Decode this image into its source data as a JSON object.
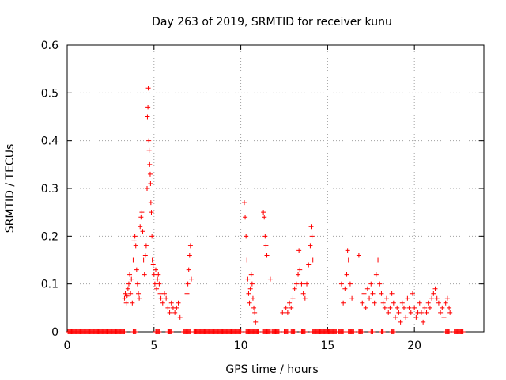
{
  "chart_data": {
    "type": "scatter",
    "title": "Day 263 of 2019, SRMTID for receiver kunu",
    "xlabel": "GPS time / hours",
    "ylabel": "SRMTID / TECUs",
    "xlim": [
      0,
      24
    ],
    "ylim": [
      0,
      0.6
    ],
    "xticks": [
      0,
      5,
      10,
      15,
      20
    ],
    "xtick_labels": [
      "0",
      "5",
      "10",
      "15",
      "20"
    ],
    "yticks": [
      0,
      0.1,
      0.2,
      0.3,
      0.4,
      0.5,
      0.6
    ],
    "ytick_labels": [
      "0",
      "0.1",
      "0.2",
      "0.3",
      "0.4",
      "0.5",
      "0.6"
    ],
    "grid": true,
    "marker": "+",
    "color": "#ff0000",
    "series": [
      {
        "name": "SRMTID",
        "points": [
          [
            3.3,
            0.07
          ],
          [
            3.35,
            0.08
          ],
          [
            3.4,
            0.06
          ],
          [
            3.45,
            0.075
          ],
          [
            3.5,
            0.09
          ],
          [
            3.55,
            0.1
          ],
          [
            3.6,
            0.12
          ],
          [
            3.65,
            0.08
          ],
          [
            3.7,
            0.11
          ],
          [
            3.75,
            0.06
          ],
          [
            3.8,
            0.15
          ],
          [
            3.85,
            0.19
          ],
          [
            3.9,
            0.2
          ],
          [
            3.95,
            0.18
          ],
          [
            4.0,
            0.13
          ],
          [
            4.05,
            0.1
          ],
          [
            4.1,
            0.08
          ],
          [
            4.15,
            0.07
          ],
          [
            4.2,
            0.22
          ],
          [
            4.25,
            0.24
          ],
          [
            4.3,
            0.25
          ],
          [
            4.35,
            0.21
          ],
          [
            4.4,
            0.15
          ],
          [
            4.45,
            0.12
          ],
          [
            4.5,
            0.16
          ],
          [
            4.55,
            0.18
          ],
          [
            4.6,
            0.3
          ],
          [
            4.62,
            0.45
          ],
          [
            4.65,
            0.47
          ],
          [
            4.67,
            0.51
          ],
          [
            4.7,
            0.4
          ],
          [
            4.72,
            0.38
          ],
          [
            4.75,
            0.35
          ],
          [
            4.78,
            0.33
          ],
          [
            4.8,
            0.31
          ],
          [
            4.82,
            0.27
          ],
          [
            4.85,
            0.25
          ],
          [
            4.88,
            0.2
          ],
          [
            4.9,
            0.15
          ],
          [
            4.95,
            0.14
          ],
          [
            5.0,
            0.12
          ],
          [
            5.05,
            0.1
          ],
          [
            5.1,
            0.13
          ],
          [
            5.15,
            0.09
          ],
          [
            5.2,
            0.11
          ],
          [
            5.25,
            0.12
          ],
          [
            5.3,
            0.1
          ],
          [
            5.35,
            0.08
          ],
          [
            5.4,
            0.07
          ],
          [
            5.5,
            0.06
          ],
          [
            5.6,
            0.08
          ],
          [
            5.7,
            0.07
          ],
          [
            5.8,
            0.05
          ],
          [
            5.9,
            0.04
          ],
          [
            6.0,
            0.06
          ],
          [
            6.1,
            0.05
          ],
          [
            6.2,
            0.04
          ],
          [
            6.3,
            0.05
          ],
          [
            6.4,
            0.06
          ],
          [
            6.5,
            0.03
          ],
          [
            6.9,
            0.08
          ],
          [
            6.95,
            0.1
          ],
          [
            7.0,
            0.13
          ],
          [
            7.05,
            0.16
          ],
          [
            7.1,
            0.18
          ],
          [
            7.15,
            0.11
          ],
          [
            10.2,
            0.27
          ],
          [
            10.25,
            0.24
          ],
          [
            10.3,
            0.2
          ],
          [
            10.35,
            0.15
          ],
          [
            10.4,
            0.11
          ],
          [
            10.45,
            0.08
          ],
          [
            10.5,
            0.06
          ],
          [
            10.55,
            0.09
          ],
          [
            10.6,
            0.12
          ],
          [
            10.65,
            0.1
          ],
          [
            10.7,
            0.07
          ],
          [
            10.75,
            0.05
          ],
          [
            10.8,
            0.04
          ],
          [
            10.85,
            0.02
          ],
          [
            11.3,
            0.25
          ],
          [
            11.35,
            0.24
          ],
          [
            11.4,
            0.2
          ],
          [
            11.45,
            0.18
          ],
          [
            11.5,
            0.16
          ],
          [
            11.7,
            0.11
          ],
          [
            12.4,
            0.04
          ],
          [
            12.6,
            0.05
          ],
          [
            12.7,
            0.04
          ],
          [
            12.8,
            0.06
          ],
          [
            12.9,
            0.05
          ],
          [
            13.0,
            0.07
          ],
          [
            13.1,
            0.09
          ],
          [
            13.2,
            0.1
          ],
          [
            13.3,
            0.12
          ],
          [
            13.35,
            0.17
          ],
          [
            13.4,
            0.13
          ],
          [
            13.5,
            0.1
          ],
          [
            13.6,
            0.08
          ],
          [
            13.7,
            0.07
          ],
          [
            13.8,
            0.1
          ],
          [
            13.9,
            0.14
          ],
          [
            14.0,
            0.18
          ],
          [
            14.05,
            0.22
          ],
          [
            14.1,
            0.2
          ],
          [
            14.15,
            0.15
          ],
          [
            15.8,
            0.1
          ],
          [
            15.9,
            0.06
          ],
          [
            16.0,
            0.09
          ],
          [
            16.1,
            0.12
          ],
          [
            16.15,
            0.17
          ],
          [
            16.2,
            0.15
          ],
          [
            16.3,
            0.1
          ],
          [
            16.4,
            0.07
          ],
          [
            16.8,
            0.16
          ],
          [
            17.0,
            0.06
          ],
          [
            17.1,
            0.08
          ],
          [
            17.2,
            0.05
          ],
          [
            17.3,
            0.09
          ],
          [
            17.4,
            0.07
          ],
          [
            17.5,
            0.1
          ],
          [
            17.6,
            0.08
          ],
          [
            17.7,
            0.06
          ],
          [
            17.8,
            0.12
          ],
          [
            17.9,
            0.15
          ],
          [
            18.0,
            0.1
          ],
          [
            18.1,
            0.08
          ],
          [
            18.2,
            0.06
          ],
          [
            18.3,
            0.05
          ],
          [
            18.4,
            0.07
          ],
          [
            18.5,
            0.04
          ],
          [
            18.6,
            0.05
          ],
          [
            18.7,
            0.08
          ],
          [
            18.8,
            0.06
          ],
          [
            18.9,
            0.03
          ],
          [
            19.0,
            0.05
          ],
          [
            19.1,
            0.04
          ],
          [
            19.2,
            0.02
          ],
          [
            19.3,
            0.06
          ],
          [
            19.4,
            0.05
          ],
          [
            19.5,
            0.03
          ],
          [
            19.6,
            0.07
          ],
          [
            19.7,
            0.05
          ],
          [
            19.8,
            0.04
          ],
          [
            19.9,
            0.08
          ],
          [
            20.0,
            0.05
          ],
          [
            20.1,
            0.03
          ],
          [
            20.2,
            0.04
          ],
          [
            20.3,
            0.06
          ],
          [
            20.4,
            0.04
          ],
          [
            20.5,
            0.02
          ],
          [
            20.6,
            0.05
          ],
          [
            20.7,
            0.04
          ],
          [
            20.8,
            0.06
          ],
          [
            20.9,
            0.05
          ],
          [
            21.0,
            0.07
          ],
          [
            21.1,
            0.08
          ],
          [
            21.2,
            0.09
          ],
          [
            21.3,
            0.07
          ],
          [
            21.4,
            0.06
          ],
          [
            21.5,
            0.04
          ],
          [
            21.6,
            0.05
          ],
          [
            21.7,
            0.03
          ],
          [
            21.8,
            0.06
          ],
          [
            21.9,
            0.07
          ],
          [
            22.0,
            0.05
          ],
          [
            22.05,
            0.04
          ]
        ],
        "zero_ranges": [
          [
            0.05,
            3.3
          ],
          [
            3.8,
            3.95
          ],
          [
            5.1,
            5.3
          ],
          [
            5.8,
            6.0
          ],
          [
            6.7,
            7.1
          ],
          [
            7.3,
            10.0
          ],
          [
            10.3,
            11.0
          ],
          [
            11.3,
            11.7
          ],
          [
            11.8,
            12.2
          ],
          [
            12.5,
            12.7
          ],
          [
            12.9,
            13.1
          ],
          [
            13.5,
            13.7
          ],
          [
            14.1,
            15.5
          ],
          [
            15.6,
            15.9
          ],
          [
            16.2,
            16.5
          ],
          [
            16.8,
            17.0
          ],
          [
            17.5,
            17.6
          ],
          [
            18.1,
            18.2
          ],
          [
            18.7,
            18.8
          ],
          [
            21.8,
            22.0
          ],
          [
            22.3,
            22.8
          ]
        ]
      }
    ]
  }
}
